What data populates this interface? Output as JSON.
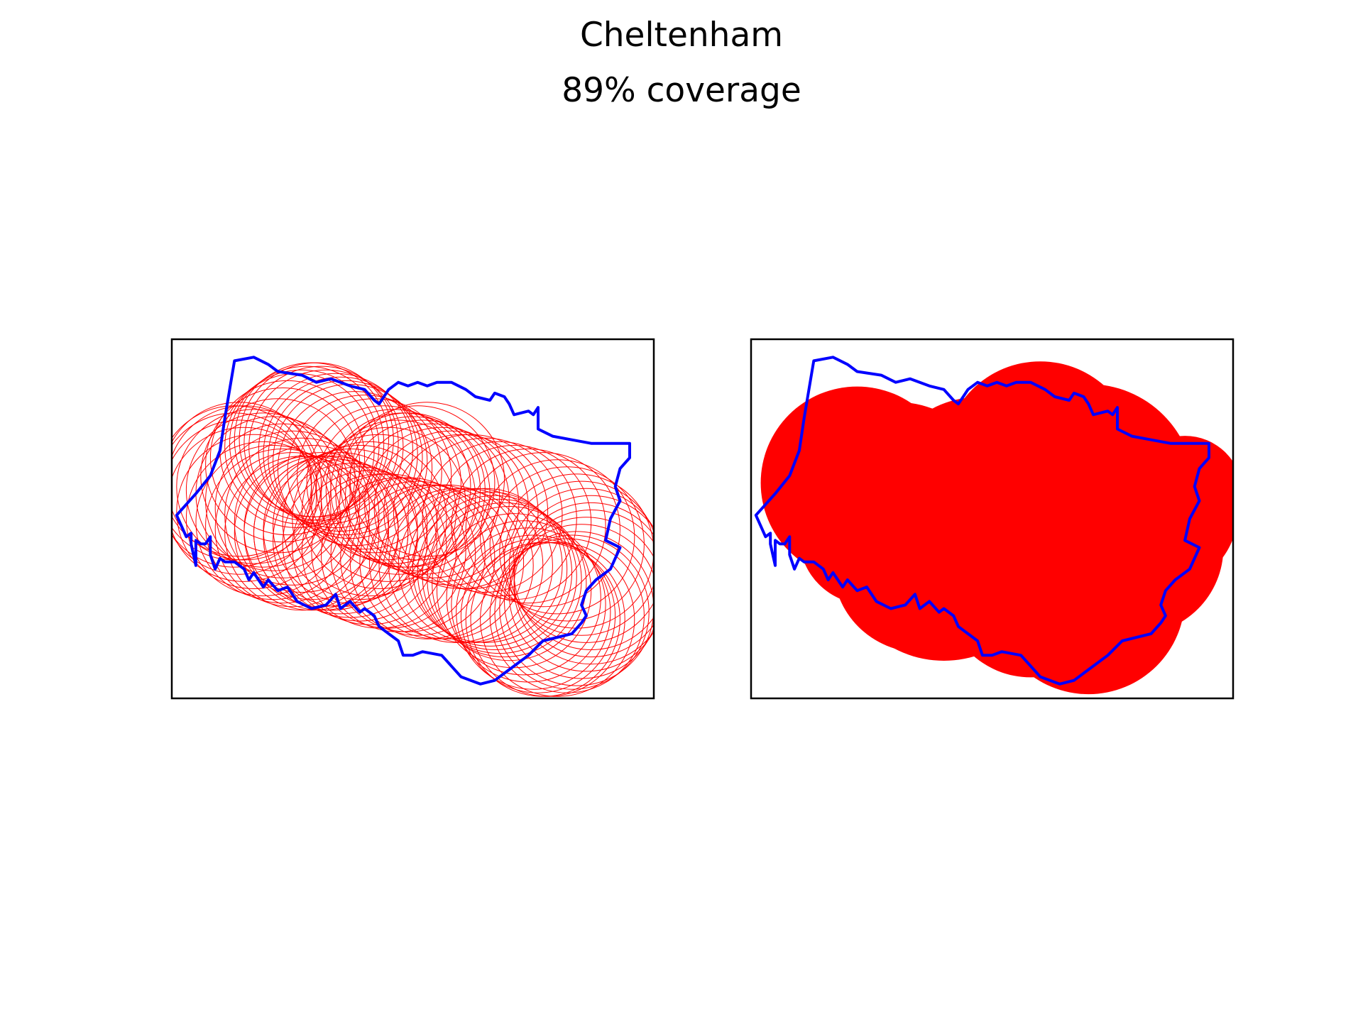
{
  "title": "Cheltenham",
  "subtitle": "89% coverage",
  "colors": {
    "boundary": "#0000ff",
    "coverage": "#ff0000",
    "frame": "#000000"
  },
  "chart_data": [
    {
      "type": "map",
      "style": "circle-outlines",
      "axes_visible": false,
      "xlim": [
        0,
        100
      ],
      "ylim": [
        0,
        100
      ],
      "boundary": [
        [
          13,
          94
        ],
        [
          17,
          95
        ],
        [
          20,
          93
        ],
        [
          22,
          91
        ],
        [
          27,
          90
        ],
        [
          30,
          88
        ],
        [
          33,
          89
        ],
        [
          37,
          87
        ],
        [
          40,
          86
        ],
        [
          42,
          83
        ],
        [
          43,
          82
        ],
        [
          44,
          84
        ],
        [
          45,
          86
        ],
        [
          47,
          88
        ],
        [
          49,
          87
        ],
        [
          51,
          88
        ],
        [
          53,
          87
        ],
        [
          55,
          88
        ],
        [
          58,
          88
        ],
        [
          61,
          86
        ],
        [
          63,
          84
        ],
        [
          66,
          83
        ],
        [
          67,
          85
        ],
        [
          69,
          84
        ],
        [
          70,
          82
        ],
        [
          71,
          79
        ],
        [
          74,
          80
        ],
        [
          75,
          79
        ],
        [
          76,
          81
        ],
        [
          76,
          75
        ],
        [
          79,
          73
        ],
        [
          83,
          72
        ],
        [
          87,
          71
        ],
        [
          90,
          71
        ],
        [
          91,
          71
        ],
        [
          95,
          71
        ],
        [
          95,
          67
        ],
        [
          93,
          64
        ],
        [
          92,
          59
        ],
        [
          93,
          55
        ],
        [
          91,
          50
        ],
        [
          90,
          44
        ],
        [
          93,
          42
        ],
        [
          91,
          36
        ],
        [
          88,
          33
        ],
        [
          86,
          30
        ],
        [
          85,
          26
        ],
        [
          86,
          23
        ],
        [
          85,
          21
        ],
        [
          83,
          18
        ],
        [
          77,
          16
        ],
        [
          74,
          12
        ],
        [
          70,
          8
        ],
        [
          67,
          5
        ],
        [
          64,
          4
        ],
        [
          60,
          6
        ],
        [
          56,
          12
        ],
        [
          52,
          13
        ],
        [
          50,
          12
        ],
        [
          48,
          12
        ],
        [
          47,
          16
        ],
        [
          45,
          18
        ],
        [
          43,
          20
        ],
        [
          42,
          23
        ],
        [
          40,
          25
        ],
        [
          39,
          24
        ],
        [
          37,
          27
        ],
        [
          35,
          25
        ],
        [
          34,
          29
        ],
        [
          32,
          26
        ],
        [
          29,
          25
        ],
        [
          26,
          27
        ],
        [
          24,
          31
        ],
        [
          22,
          30
        ],
        [
          20,
          33
        ],
        [
          19,
          31
        ],
        [
          17,
          35
        ],
        [
          16,
          33
        ],
        [
          15,
          36
        ],
        [
          13,
          38
        ],
        [
          11,
          38
        ],
        [
          10,
          39
        ],
        [
          9,
          36
        ],
        [
          8,
          40
        ],
        [
          8,
          45
        ],
        [
          7,
          43
        ],
        [
          6,
          43
        ],
        [
          5,
          44
        ],
        [
          5,
          41
        ],
        [
          5,
          37
        ],
        [
          4,
          43
        ],
        [
          4,
          46
        ],
        [
          3,
          45
        ],
        [
          2,
          48
        ],
        [
          1,
          51
        ],
        [
          5,
          57
        ],
        [
          8,
          62
        ],
        [
          10,
          69
        ],
        [
          11,
          78
        ],
        [
          12,
          86
        ]
      ],
      "centers_lon": [
        22,
        23,
        24,
        26,
        27,
        28,
        29,
        30,
        31,
        32,
        34,
        35,
        36,
        37,
        38,
        40,
        42,
        44,
        46,
        48,
        50,
        52,
        54,
        56,
        58,
        60,
        62,
        65,
        68,
        71,
        74,
        77,
        80,
        82,
        84,
        85,
        86,
        87,
        87,
        87,
        86,
        85,
        84,
        83,
        82,
        80,
        78,
        77,
        76,
        75,
        74,
        73,
        71,
        70,
        69,
        68,
        67,
        66,
        65,
        63,
        61,
        59,
        57,
        55,
        53,
        51,
        49,
        47,
        45,
        43,
        41,
        39,
        37,
        35,
        33,
        31,
        29,
        27,
        25,
        23,
        21,
        19,
        17,
        15,
        14,
        13,
        13,
        14,
        15,
        17,
        19,
        21,
        23,
        25,
        27,
        29,
        31,
        33,
        35,
        37,
        39,
        41,
        43,
        45,
        47,
        49,
        51,
        53
      ],
      "centers_lat": [
        62,
        65,
        67,
        69,
        70,
        71,
        72,
        72,
        71,
        70,
        69,
        68,
        67,
        66,
        64,
        63,
        62,
        60,
        59,
        58,
        57,
        56,
        55,
        54,
        53,
        52,
        52,
        51,
        50,
        49,
        48,
        47,
        45,
        43,
        41,
        39,
        37,
        35,
        33,
        31,
        29,
        27,
        25,
        24,
        23,
        22,
        22,
        22,
        23,
        24,
        26,
        28,
        30,
        32,
        33,
        34,
        35,
        36,
        37,
        37,
        37,
        37,
        38,
        38,
        38,
        39,
        40,
        40,
        41,
        41,
        42,
        43,
        44,
        45,
        46,
        47,
        49,
        51,
        53,
        55,
        57,
        58,
        59,
        60,
        61,
        60,
        58,
        56,
        54,
        52,
        50,
        49,
        48,
        47,
        46,
        46,
        46,
        46,
        47,
        48,
        49,
        50,
        52,
        54,
        56,
        58,
        60,
        61
      ],
      "circle_radius": 16
    },
    {
      "type": "map",
      "style": "filled-union",
      "axes_visible": false,
      "xlim": [
        0,
        100
      ],
      "ylim": [
        0,
        100
      ],
      "circles": [
        [
          22,
          60,
          20
        ],
        [
          30,
          53,
          22
        ],
        [
          40,
          40,
          22
        ],
        [
          54,
          43,
          22
        ],
        [
          60,
          67,
          20
        ],
        [
          70,
          58,
          22
        ],
        [
          80,
          42,
          18
        ],
        [
          70,
          28,
          20
        ],
        [
          85,
          52,
          16
        ],
        [
          47,
          57,
          20
        ],
        [
          35,
          37,
          18
        ],
        [
          64,
          47,
          20
        ],
        [
          58,
          30,
          18
        ],
        [
          24,
          45,
          14
        ],
        [
          90,
          57,
          12
        ],
        [
          76,
          25,
          12
        ]
      ]
    }
  ]
}
